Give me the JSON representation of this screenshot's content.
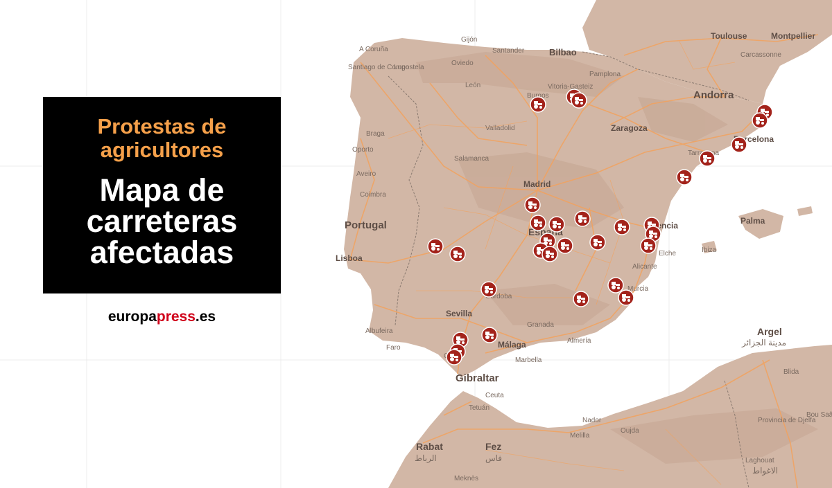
{
  "header": {
    "subtitle": "Protestas de agricultores",
    "headline": "Mapa de carreteras afectadas"
  },
  "brand": {
    "part1": "europa",
    "part2": "press",
    "part3": ".es",
    "accent_color": "#d0021b"
  },
  "colors": {
    "land": "#d2b7a6",
    "land_dark": "#c4a592",
    "road": "#f2a25e",
    "marker": "#a3231b",
    "water": "#ffffff"
  },
  "map": {
    "places_major": [
      "Portugal",
      "Madrid",
      "Zaragoza",
      "Andorra",
      "Barcelona",
      "Valencia",
      "Palma",
      "Sevilla",
      "Málaga",
      "Gibraltar",
      "Lisboa",
      "Bilbao",
      "Toulouse",
      "Montpellier",
      "Argel",
      "Rabat",
      "Fez",
      "España"
    ],
    "places_minor": [
      "A Coruña",
      "Santiago de Compostela",
      "Lugo",
      "Gijón",
      "Oviedo",
      "Santander",
      "León",
      "Burgos",
      "Vitoria-Gasteiz",
      "Pamplona",
      "Valladolid",
      "Salamanca",
      "Braga",
      "Oporto",
      "Aveiro",
      "Coimbra",
      "Carcassonne",
      "Tarragona",
      "Ibiza",
      "Alicante",
      "Elche",
      "Murcia",
      "Almería",
      "Granada",
      "Córdoba",
      "Albufeira",
      "Faro",
      "Cádiz",
      "Marbella",
      "Tetuán",
      "Ceuta",
      "Melilla",
      "Nador",
      "Oujda",
      "Meknès",
      "Blida",
      "Provincia de Djelfa",
      "Laghouat",
      "Bou Saâda"
    ],
    "places_arabic": [
      "مدينة الجزائر",
      "الرباط",
      "فاس",
      "الاغواط"
    ],
    "protest_markers": 40,
    "marker_icon": "tractor-icon"
  }
}
